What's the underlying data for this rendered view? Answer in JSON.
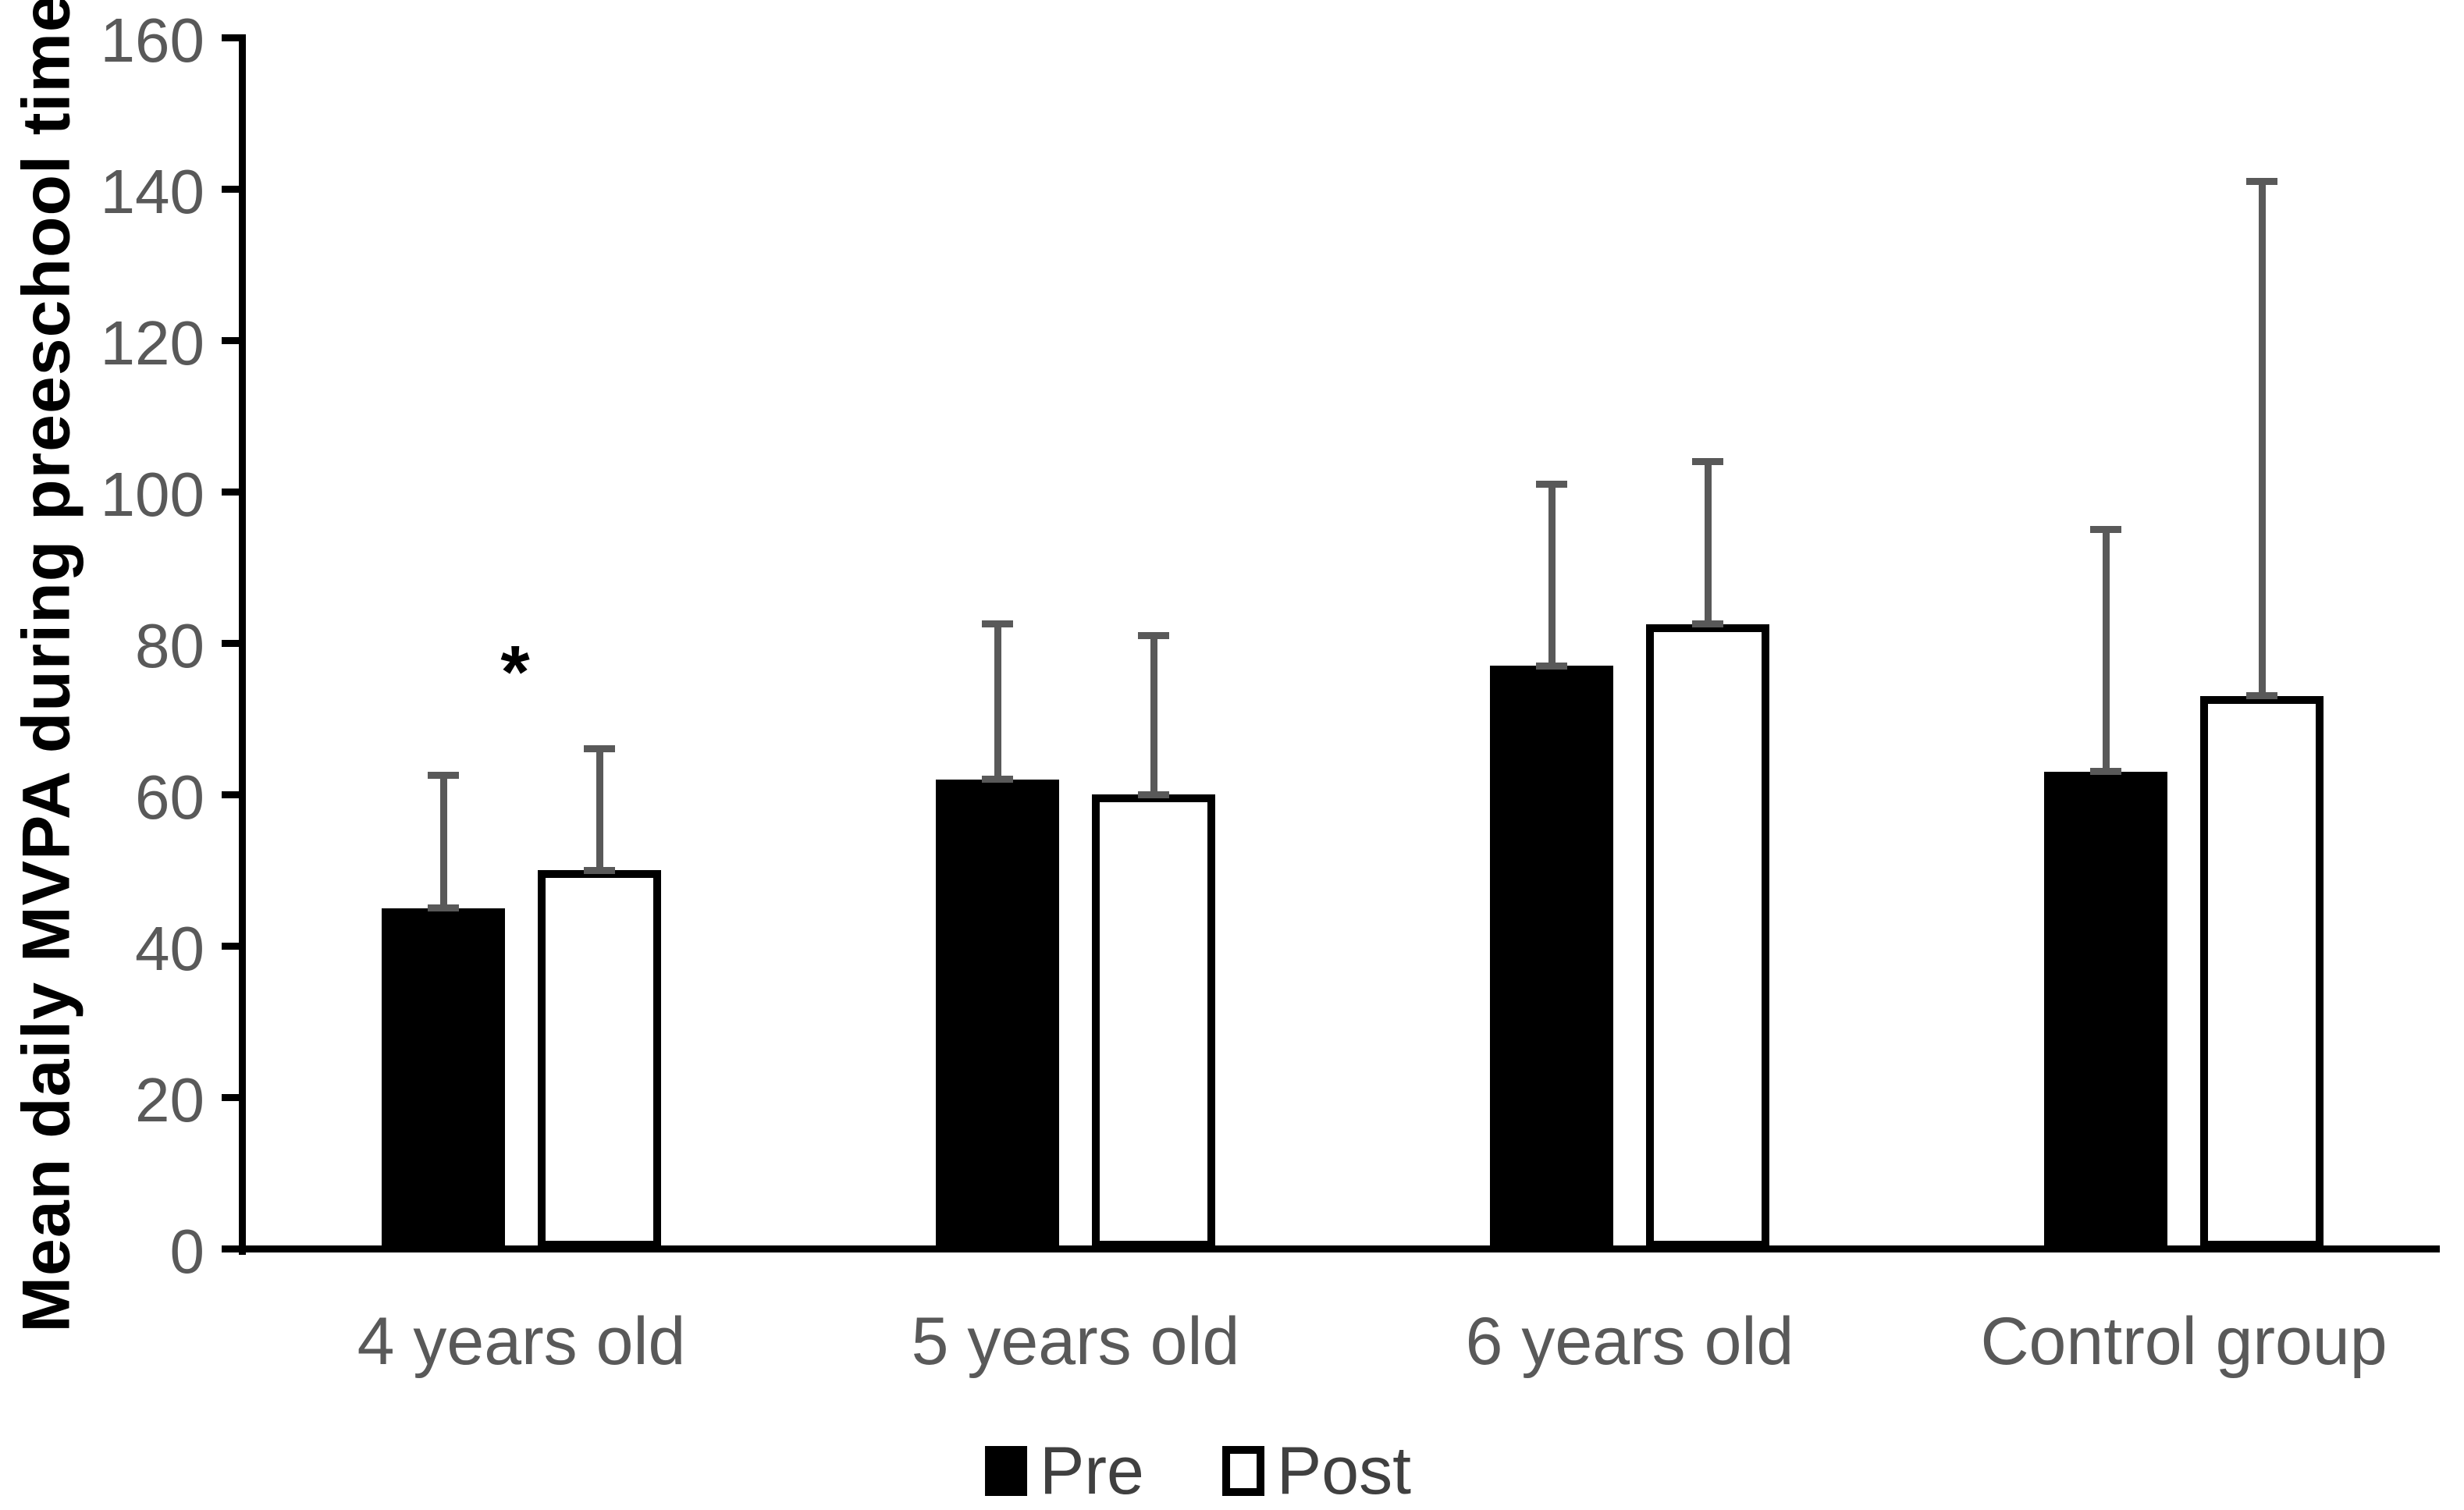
{
  "chart_data": {
    "type": "bar",
    "title": "",
    "categories": [
      "4 years old",
      "5 years old",
      "6 years old",
      "Control group"
    ],
    "series": [
      {
        "name": "Pre",
        "fill": "#000000",
        "outline": "#000000",
        "values": [
          45,
          62,
          77,
          63
        ],
        "error_upper": [
          62.5,
          82.5,
          101,
          95
        ]
      },
      {
        "name": "Post",
        "fill": "#ffffff",
        "outline": "#000000",
        "values": [
          50,
          60,
          82.5,
          73
        ],
        "error_upper": [
          66,
          81,
          104,
          141
        ]
      }
    ],
    "xlabel": "",
    "ylabel": "Mean daily  MVPA during preeschool time",
    "ylim": [
      0,
      160
    ],
    "yticks": [
      0,
      20,
      40,
      60,
      80,
      100,
      120,
      140,
      160
    ],
    "grid": false,
    "legend_position": "bottom",
    "legend_entries": [
      "Pre",
      "Post"
    ],
    "error_bars": {
      "direction": "upper",
      "caps": true,
      "color": "#595959"
    },
    "annotations": [
      {
        "text": "*",
        "category": "4 years old",
        "position": "between-bars",
        "at_value": 80
      }
    ]
  },
  "colors": {
    "background": "#ffffff",
    "axis": "#000000",
    "tick_label": "#595959",
    "category_label": "#595959",
    "error_bar": "#595959",
    "bar_pre_fill": "#000000",
    "bar_post_fill": "#ffffff",
    "bar_outline": "#000000",
    "legend_text": "#404040",
    "y_title": "#000000"
  }
}
